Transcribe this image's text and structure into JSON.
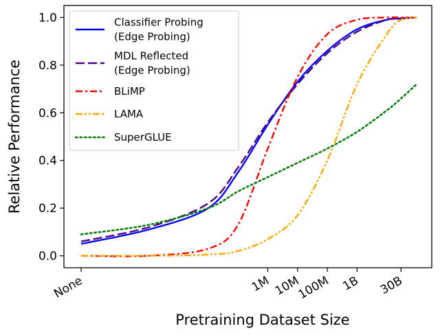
{
  "chart_data": {
    "type": "line",
    "xlabel": "Pretraining Dataset Size",
    "ylabel": "Relative Performance",
    "ylim": [
      -0.05,
      1.05
    ],
    "yticks": [
      0.0,
      0.2,
      0.4,
      0.6,
      0.8,
      1.0
    ],
    "ytick_labels": [
      "0.0",
      "0.2",
      "0.4",
      "0.6",
      "0.8",
      "1.0"
    ],
    "xscale": "log (words), with 'None' at far left",
    "xticks": [
      {
        "label": "None",
        "value": 0
      },
      {
        "label": "1M",
        "value": 1000000
      },
      {
        "label": "10M",
        "value": 10000000
      },
      {
        "label": "100M",
        "value": 100000000
      },
      {
        "label": "1B",
        "value": 1000000000
      },
      {
        "label": "30B",
        "value": 30000000000
      }
    ],
    "grid": false,
    "legend_position": "top-left",
    "series": [
      {
        "name": "Classifier Probing\n(Edge Probing)",
        "color": "#0000ff",
        "style": "solid",
        "points": [
          [
            "None",
            0.05
          ],
          [
            100,
            0.11
          ],
          [
            10000,
            0.2
          ],
          [
            100000,
            0.35
          ],
          [
            1000000,
            0.55
          ],
          [
            10000000,
            0.73
          ],
          [
            100000000,
            0.86
          ],
          [
            1000000000,
            0.95
          ],
          [
            10000000000,
            0.99
          ],
          [
            30000000000,
            0.995
          ],
          [
            100000000000,
            1.0
          ]
        ]
      },
      {
        "name": "MDL Reflected\n(Edge Probing)",
        "color": "#4b0082",
        "style": "dashed",
        "points": [
          [
            "None",
            0.06
          ],
          [
            100,
            0.12
          ],
          [
            10000,
            0.22
          ],
          [
            100000,
            0.37
          ],
          [
            1000000,
            0.56
          ],
          [
            10000000,
            0.72
          ],
          [
            100000000,
            0.85
          ],
          [
            1000000000,
            0.94
          ],
          [
            10000000000,
            0.99
          ],
          [
            30000000000,
            0.997
          ],
          [
            100000000000,
            1.0
          ]
        ]
      },
      {
        "name": "BLiMP",
        "color": "#ff0000",
        "style": "dashdot",
        "points": [
          [
            "None",
            0.0
          ],
          [
            100,
            0.0
          ],
          [
            10000,
            0.03
          ],
          [
            100000,
            0.13
          ],
          [
            1000000,
            0.45
          ],
          [
            10000000,
            0.75
          ],
          [
            100000000,
            0.93
          ],
          [
            1000000000,
            0.99
          ],
          [
            10000000000,
            1.0
          ],
          [
            30000000000,
            1.0
          ],
          [
            100000000000,
            1.0
          ]
        ]
      },
      {
        "name": "LAMA",
        "color": "#ffa500",
        "style": "dashdotdot",
        "points": [
          [
            "None",
            0.0
          ],
          [
            100,
            0.0
          ],
          [
            10000,
            0.005
          ],
          [
            100000,
            0.02
          ],
          [
            1000000,
            0.07
          ],
          [
            10000000,
            0.17
          ],
          [
            100000000,
            0.4
          ],
          [
            1000000000,
            0.72
          ],
          [
            10000000000,
            0.93
          ],
          [
            30000000000,
            0.99
          ],
          [
            100000000000,
            1.0
          ]
        ]
      },
      {
        "name": "SuperGLUE",
        "color": "#008000",
        "style": "dotted",
        "points": [
          [
            "None",
            0.09
          ],
          [
            100,
            0.13
          ],
          [
            10000,
            0.2
          ],
          [
            100000,
            0.27
          ],
          [
            1000000,
            0.33
          ],
          [
            10000000,
            0.39
          ],
          [
            100000000,
            0.45
          ],
          [
            1000000000,
            0.52
          ],
          [
            10000000000,
            0.61
          ],
          [
            30000000000,
            0.66
          ],
          [
            100000000000,
            0.72
          ]
        ]
      }
    ]
  }
}
